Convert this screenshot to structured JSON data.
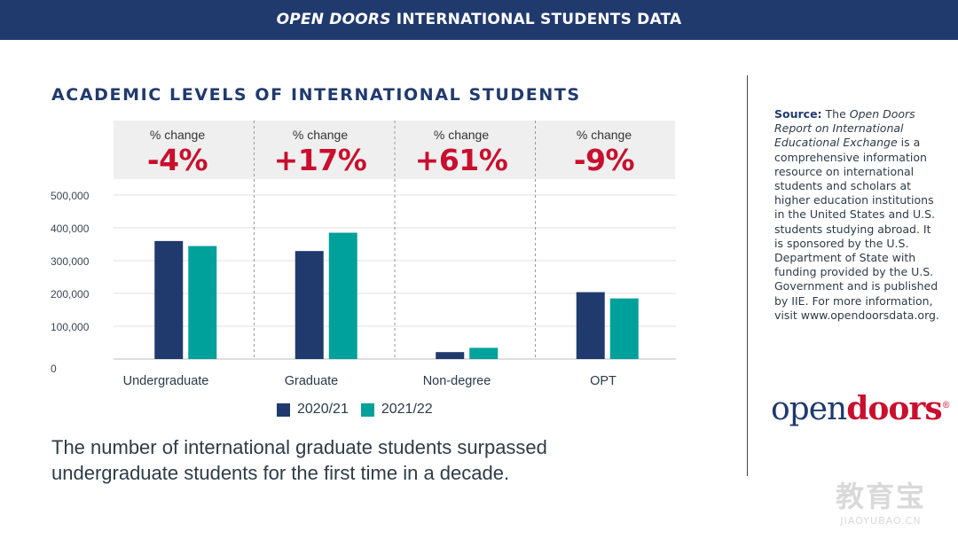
{
  "header": {
    "title_em": "OPEN DOORS",
    "title_rest": " INTERNATIONAL STUDENTS DATA"
  },
  "section_title": "ACADEMIC LEVELS OF INTERNATIONAL STUDENTS",
  "changes": [
    {
      "label": "% change",
      "value": "-4%"
    },
    {
      "label": "% change",
      "value": "+17%"
    },
    {
      "label": "% change",
      "value": "+61%"
    },
    {
      "label": "% change",
      "value": "-9%"
    }
  ],
  "chart_data": {
    "type": "bar",
    "categories": [
      "Undergraduate",
      "Graduate",
      "Non-degree",
      "OPT"
    ],
    "series": [
      {
        "name": "2020/21",
        "color": "#213a6d",
        "values": [
          359787,
          329272,
          21151,
          203885
        ]
      },
      {
        "name": "2021/22",
        "color": "#00a19a",
        "values": [
          344532,
          385097,
          34131,
          184759
        ]
      }
    ],
    "ylim": [
      0,
      500000
    ],
    "yticks": [
      0,
      100000,
      200000,
      300000,
      400000,
      500000
    ],
    "ytick_labels": [
      "0",
      "100,000",
      "200,000",
      "300,000",
      "400,000",
      "500,000"
    ],
    "grid": true,
    "legend_position": "bottom-center"
  },
  "caption": "The number of international graduate students surpassed undergraduate students for the first time in a decade.",
  "source": {
    "label": "Source:",
    "text_pre": " The ",
    "title_italic": "Open Doors Report on International Educational Exchange",
    "text_post": " is a comprehensive information resource on international students and scholars at higher education institutions in the United States and U.S. students studying abroad. It is sponsored by the U.S. Department of State with funding provided by the U.S. Government and is published by IIE. For more information, visit www.opendoorsdata.org."
  },
  "logo": {
    "part1": "open",
    "part2": "doors",
    "mark": "®"
  },
  "watermark": {
    "big": "教育宝",
    "small": "JIAOYUBAO.CN"
  }
}
